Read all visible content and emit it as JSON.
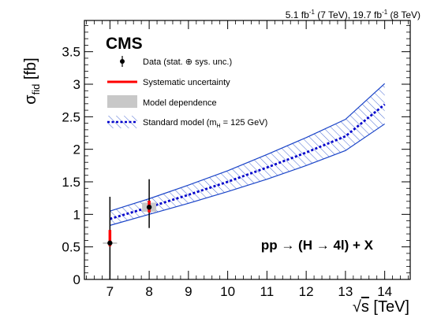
{
  "chart_data": {
    "type": "line",
    "header": {
      "lumi_parts": [
        "5.1 fb",
        "-1",
        " (7 TeV), 19.7 fb",
        "-1",
        " (8 TeV)"
      ],
      "experiment": "CMS"
    },
    "xlabel": {
      "root": "√",
      "symbol": "s",
      "unit": " [TeV]"
    },
    "ylabel": {
      "symbol": "σ",
      "subscript": "fid",
      "unit": " [fb]"
    },
    "xlim": [
      6.35,
      14.65
    ],
    "ylim": [
      0,
      3.98
    ],
    "x_ticks": [
      "7",
      "8",
      "9",
      "10",
      "11",
      "12",
      "13",
      "14"
    ],
    "y_ticks": [
      "0",
      "0.5",
      "1",
      "1.5",
      "2",
      "2.5",
      "3",
      "3.5"
    ],
    "annotation": {
      "prefix": "pp → (H → 4l) + X"
    },
    "legend": {
      "data": "Data (stat. ⊕ sys. unc.)",
      "systematic": "Systematic uncertainty",
      "model": "Model dependence",
      "sm_prefix": "Standard model (m",
      "sm_sub": "H",
      "sm_suffix": " = 125 GeV)"
    },
    "standard_model": {
      "x": [
        7,
        8,
        9,
        10,
        11,
        12,
        13,
        14
      ],
      "central": [
        0.93,
        1.11,
        1.3,
        1.5,
        1.72,
        1.95,
        2.2,
        2.69
      ],
      "low": [
        0.83,
        1.0,
        1.17,
        1.35,
        1.54,
        1.75,
        1.98,
        2.39
      ],
      "high": [
        1.05,
        1.24,
        1.45,
        1.67,
        1.92,
        2.18,
        2.46,
        3.01
      ]
    },
    "data_points": [
      {
        "x": 7,
        "y": 0.56,
        "stat_sys_low": 0.0,
        "stat_sys_high": 1.27,
        "sys_low": 0.51,
        "sys_high": 0.76,
        "model_low": 0.55,
        "model_high": 0.57
      },
      {
        "x": 8,
        "y": 1.11,
        "stat_sys_low": 0.79,
        "stat_sys_high": 1.54,
        "sys_low": 1.03,
        "sys_high": 1.21,
        "model_low": 1.04,
        "model_high": 1.18
      }
    ],
    "colors": {
      "data": "#000000",
      "systematic": "#ff0000",
      "model": "#c8c8c8",
      "standard_model": "#0000cc",
      "band_edge": "#1a44c8"
    }
  }
}
